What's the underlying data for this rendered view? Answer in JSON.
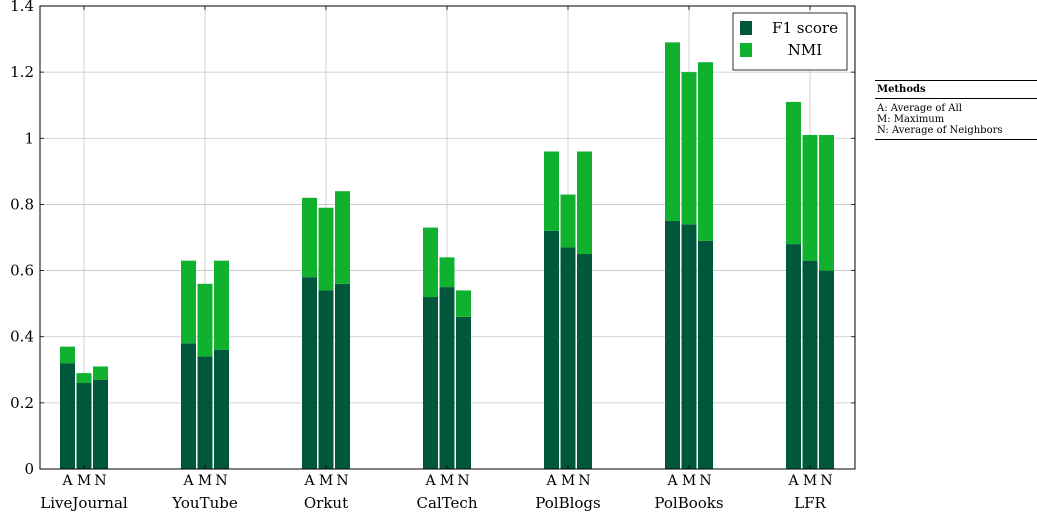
{
  "chart_data": {
    "type": "bar",
    "stacked": true,
    "ylim": [
      0,
      1.4
    ],
    "yticks": [
      0,
      0.2,
      0.4,
      0.6,
      0.8,
      1,
      1.2,
      1.4
    ],
    "ytick_labels": [
      "0",
      "0.2",
      "0.4",
      "0.6",
      "0.8",
      "1",
      "1.2",
      "1.4"
    ],
    "grid": true,
    "legend_position": "top-right",
    "categories": [
      "LiveJournal",
      "YouTube",
      "Orkut",
      "CalTech",
      "PolBlogs",
      "PolBooks",
      "LFR"
    ],
    "bar_labels": [
      "A",
      "M",
      "N"
    ],
    "series": [
      {
        "name": "F1 score",
        "color": "#00573b",
        "values": [
          [
            0.32,
            0.26,
            0.27
          ],
          [
            0.38,
            0.34,
            0.36
          ],
          [
            0.58,
            0.54,
            0.56
          ],
          [
            0.52,
            0.55,
            0.46
          ],
          [
            0.72,
            0.67,
            0.65
          ],
          [
            0.75,
            0.74,
            0.69
          ],
          [
            0.68,
            0.63,
            0.6
          ]
        ]
      },
      {
        "name": "NMI",
        "color": "#0fb12f",
        "values": [
          [
            0.05,
            0.03,
            0.04
          ],
          [
            0.25,
            0.22,
            0.27
          ],
          [
            0.24,
            0.25,
            0.28
          ],
          [
            0.21,
            0.09,
            0.08
          ],
          [
            0.24,
            0.16,
            0.31
          ],
          [
            0.54,
            0.46,
            0.54
          ],
          [
            0.43,
            0.38,
            0.41
          ]
        ]
      }
    ]
  },
  "methods_table": {
    "title": "Methods",
    "rows": [
      "A: Average of All",
      "M: Maximum",
      "N: Average of Neighbors"
    ]
  }
}
